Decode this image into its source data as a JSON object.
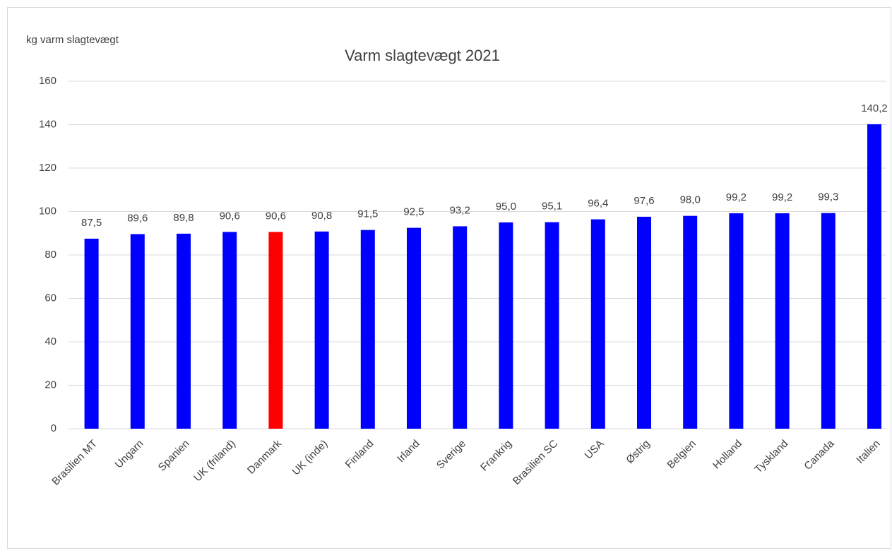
{
  "chart_data": {
    "type": "bar",
    "title": "Varm slagtevægt 2021",
    "y_label": "kg varm slagtevægt",
    "categories": [
      "Brasilien MT",
      "Ungarn",
      "Spanien",
      "UK (friland)",
      "Danmark",
      "UK (inde)",
      "Finland",
      "Irland",
      "Sverige",
      "Frankrig",
      "Brasilien SC",
      "USA",
      "Østrig",
      "Belgien",
      "Holland",
      "Tyskland",
      "Canada",
      "Italien"
    ],
    "values": [
      87.5,
      89.6,
      89.8,
      90.6,
      90.6,
      90.8,
      91.5,
      92.5,
      93.2,
      95.0,
      95.1,
      96.4,
      97.6,
      98.0,
      99.2,
      99.2,
      99.3,
      140.2
    ],
    "value_labels": [
      "87,5",
      "89,6",
      "89,8",
      "90,6",
      "90,6",
      "90,8",
      "91,5",
      "92,5",
      "93,2",
      "95,0",
      "95,1",
      "96,4",
      "97,6",
      "98,0",
      "99,2",
      "99,2",
      "99,3",
      "140,2"
    ],
    "colors": [
      "#0000ff",
      "#0000ff",
      "#0000ff",
      "#0000ff",
      "#ff0000",
      "#0000ff",
      "#0000ff",
      "#0000ff",
      "#0000ff",
      "#0000ff",
      "#0000ff",
      "#0000ff",
      "#0000ff",
      "#0000ff",
      "#0000ff",
      "#0000ff",
      "#0000ff",
      "#0000ff"
    ],
    "ylim": [
      0,
      160
    ],
    "yticks": [
      0,
      20,
      40,
      60,
      80,
      100,
      120,
      140,
      160
    ],
    "grid": true
  }
}
